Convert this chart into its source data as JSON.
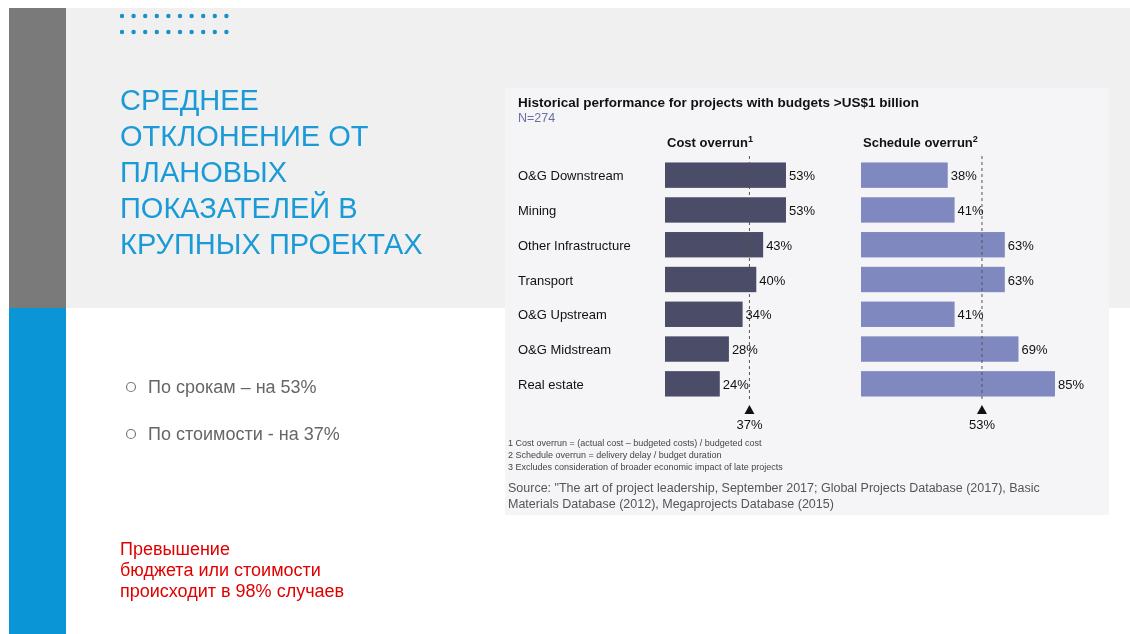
{
  "chart_data": [
    {
      "type": "other",
      "title": "СРЕДНЕЕ\nОТКЛОНЕНИЕ ОТ\nПЛАНОВЫХ\nПОКАЗАТЕЛЕЙ В\nКРУПНЫХ ПРОЕКТАХ",
      "annotations": [
        "По срокам – на 53%",
        "По стоимости - на 37%",
        "Превышение\nбюджета или стоимости\nпроисходит в 98% случаев"
      ]
    },
    {
      "type": "bar",
      "orientation": "horizontal",
      "title": "Cost overrun$^{1}$",
      "categories": [
        "O&G Downstream",
        "Mining",
        "Other Infrastructure",
        "Transport",
        "O&G Upstream",
        "O&G Midstream",
        "Real estate"
      ],
      "values": [
        53,
        53,
        43,
        40,
        34,
        28,
        24
      ],
      "value_labels": [
        "53%",
        "53%",
        "43%",
        "40%",
        "34%",
        "28%",
        "24%"
      ],
      "color": "#4a4c68",
      "tick_labels": "y",
      "ref_lines": [
        {
          "axis": "x",
          "value": 37,
          "label": "37%",
          "line_style": "dashed",
          "color": "#555555"
        }
      ],
      "annotations": [
        "Historical performance for projects with budgets >US$1 billion",
        "N=274"
      ]
    },
    {
      "type": "bar",
      "orientation": "horizontal",
      "title": "Schedule overrun$^{2}$",
      "categories": [
        null,
        null,
        null,
        null,
        null,
        null,
        null
      ],
      "values": [
        38,
        41,
        63,
        63,
        41,
        69,
        85
      ],
      "value_labels": [
        "38%",
        "41%",
        "63%",
        "63%",
        "41%",
        "69%",
        "85%"
      ],
      "color": "#8088c0",
      "ref_lines": [
        {
          "axis": "x",
          "value": 53,
          "label": "53%",
          "line_style": "dashed",
          "color": "#555555"
        }
      ],
      "annotations": [
        "1 Cost overrun = (actual cost – budgeted costs) / budgeted cost",
        "2 Schedule overrun = delivery delay / budget duration",
        "3 Excludes consideration of broader economic impact of late projects",
        "Source: \"The art of project leadership, September 2017; Global Projects Database (2017), Basic Materials Database (2012), Megaprojects Database (2015)"
      ]
    }
  ]
}
